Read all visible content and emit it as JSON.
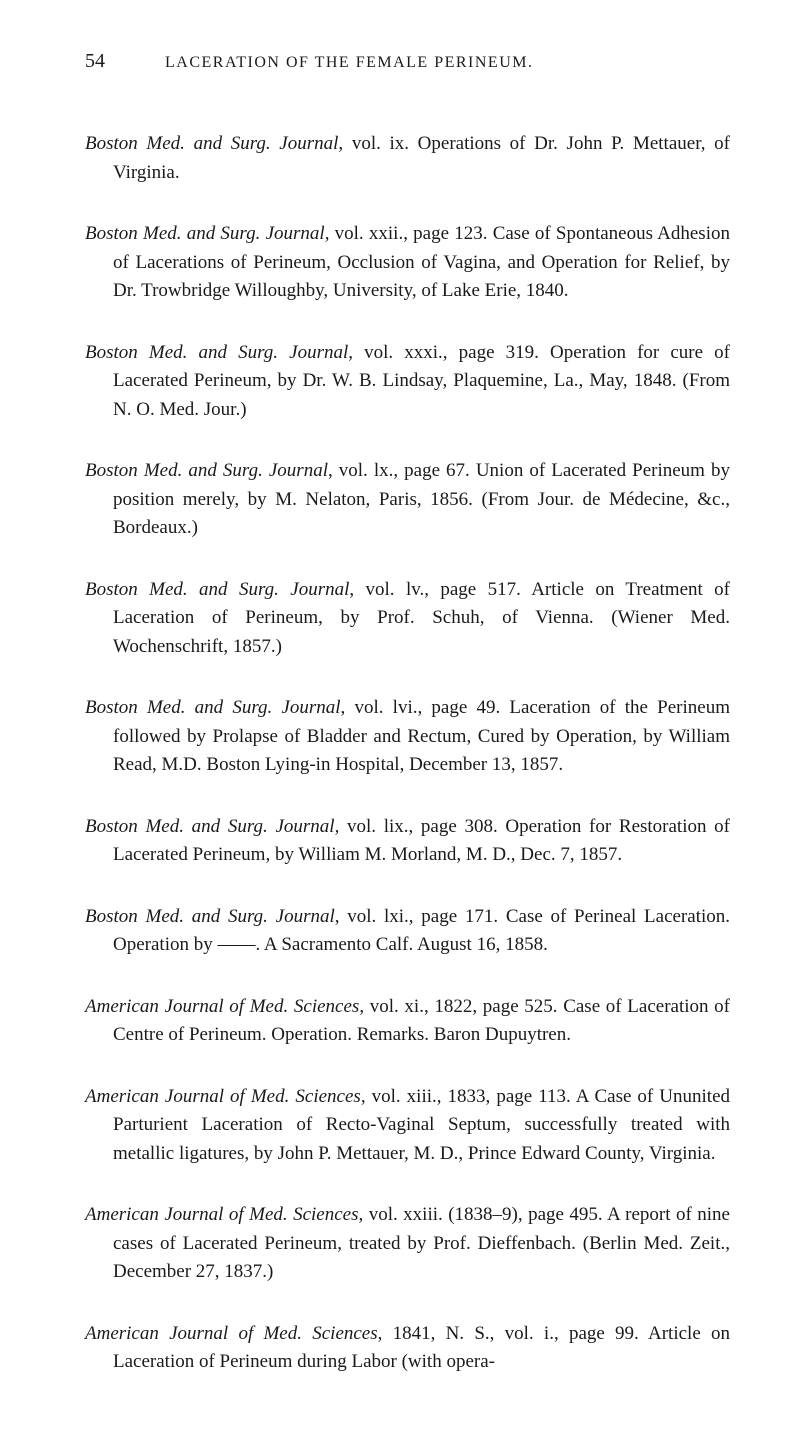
{
  "background_color": "#ffffff",
  "text_color": "#1a1a1a",
  "font_family": "Georgia, Times New Roman, serif",
  "body_fontsize": 19,
  "header_fontsize": 16,
  "pagenum_fontsize": 20,
  "page_number": "54",
  "running_title": "LACERATION OF THE FEMALE PERINEUM.",
  "entries": [
    {
      "ital": "Boston Med. and Surg. Journal",
      "rest": ", vol. ix. Operations of Dr. John P. Mettauer, of Virginia."
    },
    {
      "ital": "Boston Med. and Surg. Journal",
      "rest": ", vol. xxii., page 123. Case of Spontaneous Adhesion of Lacerations of Perineum, Occlusion of Vagina, and Operation for Relief, by Dr. Trowbridge Willoughby, University, of Lake Erie, 1840."
    },
    {
      "ital": "Boston Med. and Surg. Journal",
      "rest": ", vol. xxxi., page 319. Operation for cure of Lacerated Perineum, by Dr. W. B. Lindsay, Plaquemine, La., May, 1848. (From N. O. Med. Jour.)"
    },
    {
      "ital": "Boston Med. and Surg. Journal",
      "rest": ", vol. lx., page 67. Union of Lacerated Perineum by position merely, by M. Nelaton, Paris, 1856. (From Jour. de Médecine, &c., Bordeaux.)"
    },
    {
      "ital": "Boston Med. and Surg. Journal",
      "rest": ", vol. lv., page 517. Article on Treatment of Laceration of Perineum, by Prof. Schuh, of Vienna. (Wiener Med. Wochenschrift, 1857.)"
    },
    {
      "ital": "Boston Med. and Surg. Journal",
      "rest": ", vol. lvi., page 49. Laceration of the Perineum followed by Prolapse of Bladder and Rectum, Cured by Operation, by William Read, M.D. Boston Lying-in Hospital, December 13, 1857."
    },
    {
      "ital": "Boston Med. and Surg. Journal",
      "rest": ", vol. lix., page 308. Operation for Restoration of Lacerated Perineum, by William M. Morland, M. D., Dec. 7, 1857."
    },
    {
      "ital": "Boston Med. and Surg. Journal",
      "rest": ", vol. lxi., page 171. Case of Perineal Laceration. Operation by ——. A Sacramento Calf. August 16, 1858."
    },
    {
      "ital": "American Journal of Med. Sciences",
      "rest": ", vol. xi., 1822, page 525. Case of Laceration of Centre of Perineum. Operation. Remarks. Baron Dupuytren."
    },
    {
      "ital": "American Journal of Med. Sciences",
      "rest": ", vol. xiii., 1833, page 113. A Case of Ununited Parturient Laceration of Recto-Vaginal Septum, successfully treated with metallic ligatures, by John P. Mettauer, M. D., Prince Edward County, Virginia."
    },
    {
      "ital": "American Journal of Med. Sciences",
      "rest": ", vol. xxiii. (1838–9), page 495. A report of nine cases of Lacerated Perineum, treated by Prof. Dieffenbach. (Berlin Med. Zeit., December 27, 1837.)"
    },
    {
      "ital": "American Journal of Med. Sciences",
      "rest": ", 1841, N. S., vol. i., page 99. Article on Laceration of Perineum during Labor (with opera-"
    }
  ]
}
